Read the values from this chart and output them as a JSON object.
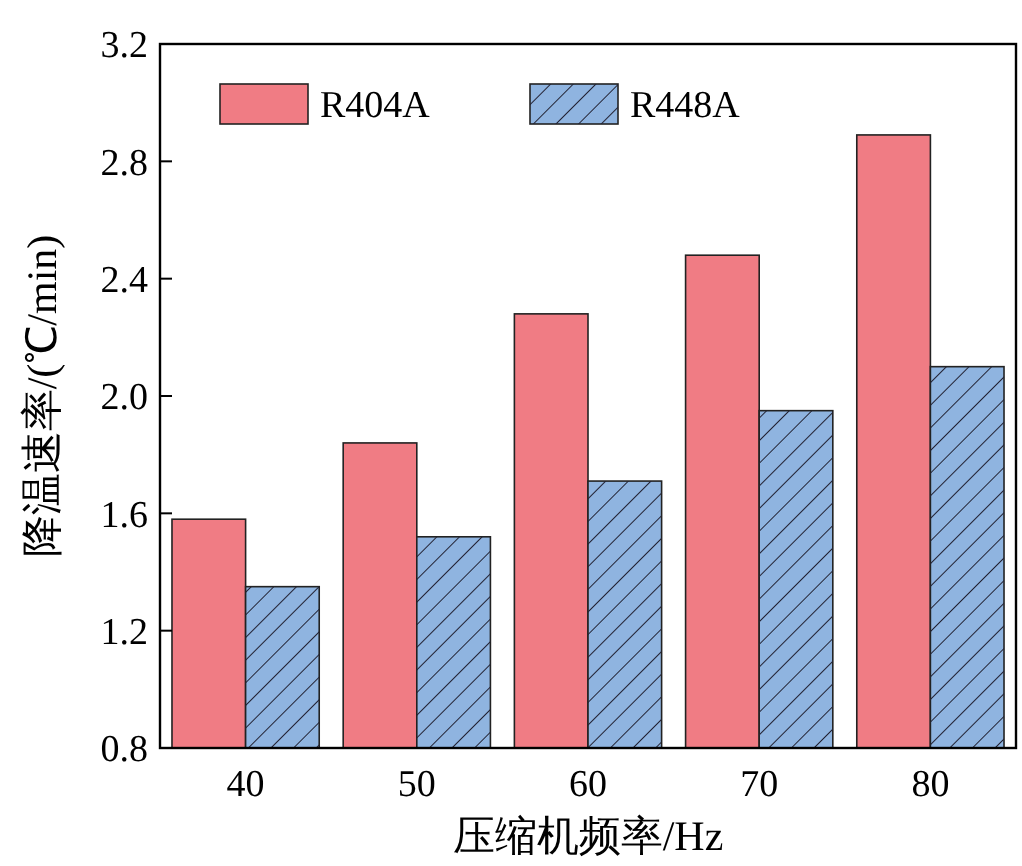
{
  "chart_data": {
    "type": "bar",
    "categories": [
      "40",
      "50",
      "60",
      "70",
      "80"
    ],
    "series": [
      {
        "name": "R404A",
        "color": "#f07c84",
        "values": [
          1.58,
          1.84,
          2.28,
          2.48,
          2.89
        ]
      },
      {
        "name": "R448A",
        "color": "#8fb4e0",
        "values": [
          1.35,
          1.52,
          1.71,
          1.95,
          2.1
        ]
      }
    ],
    "xlabel": "压缩机频率/Hz",
    "ylabel": "降温速率/(℃/min)",
    "ylim": [
      0.8,
      3.2
    ],
    "yticks": [
      0.8,
      1.2,
      1.6,
      {
        "value": 2,
        "label": "2.0"
      },
      2.4,
      2.8,
      3.2
    ],
    "legend": "top left",
    "grid": false
  }
}
